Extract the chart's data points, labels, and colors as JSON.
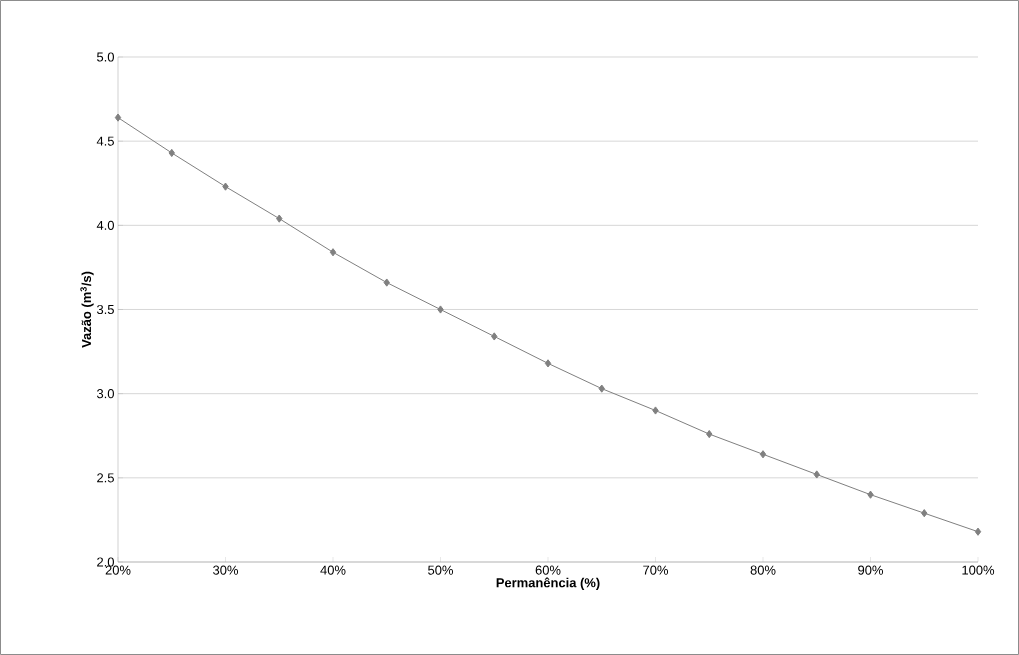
{
  "chart_data": {
    "type": "line",
    "xlabel": "Permanência (%)",
    "ylabel": "Vazão (m$^{3}$/s)",
    "x": [
      20,
      25,
      30,
      35,
      40,
      45,
      50,
      55,
      60,
      65,
      70,
      75,
      80,
      85,
      90,
      95,
      100
    ],
    "series": [
      {
        "color": "#808080",
        "values": [
          4.64,
          4.43,
          4.23,
          4.04,
          3.84,
          3.66,
          3.5,
          3.34,
          3.18,
          3.03,
          2.9,
          2.76,
          2.64,
          2.52,
          2.4,
          2.29,
          2.18
        ]
      }
    ],
    "xlim": [
      20,
      100
    ],
    "ylim": [
      2.0,
      5.0
    ],
    "xticks": [
      {
        "value": 20,
        "label": "20%"
      },
      {
        "value": 30,
        "label": "30%"
      },
      {
        "value": 40,
        "label": "40%"
      },
      {
        "value": 50,
        "label": "50%"
      },
      {
        "value": 60,
        "label": "60%"
      },
      {
        "value": 70,
        "label": "70%"
      },
      {
        "value": 80,
        "label": "80%"
      },
      {
        "value": 90,
        "label": "90%"
      },
      {
        "value": 100,
        "label": "100%"
      }
    ],
    "yticks": [
      {
        "value": 2.0,
        "label": "2.0"
      },
      {
        "value": 2.5,
        "label": "2.5"
      },
      {
        "value": 3.0,
        "label": "3.0"
      },
      {
        "value": 3.5,
        "label": "3.5"
      },
      {
        "value": 4.0,
        "label": "4.0"
      },
      {
        "value": 4.5,
        "label": "4.5"
      },
      {
        "value": 5.0,
        "label": "5.0"
      }
    ],
    "grid": "y",
    "marker": "diamond",
    "line_style": "solid"
  }
}
